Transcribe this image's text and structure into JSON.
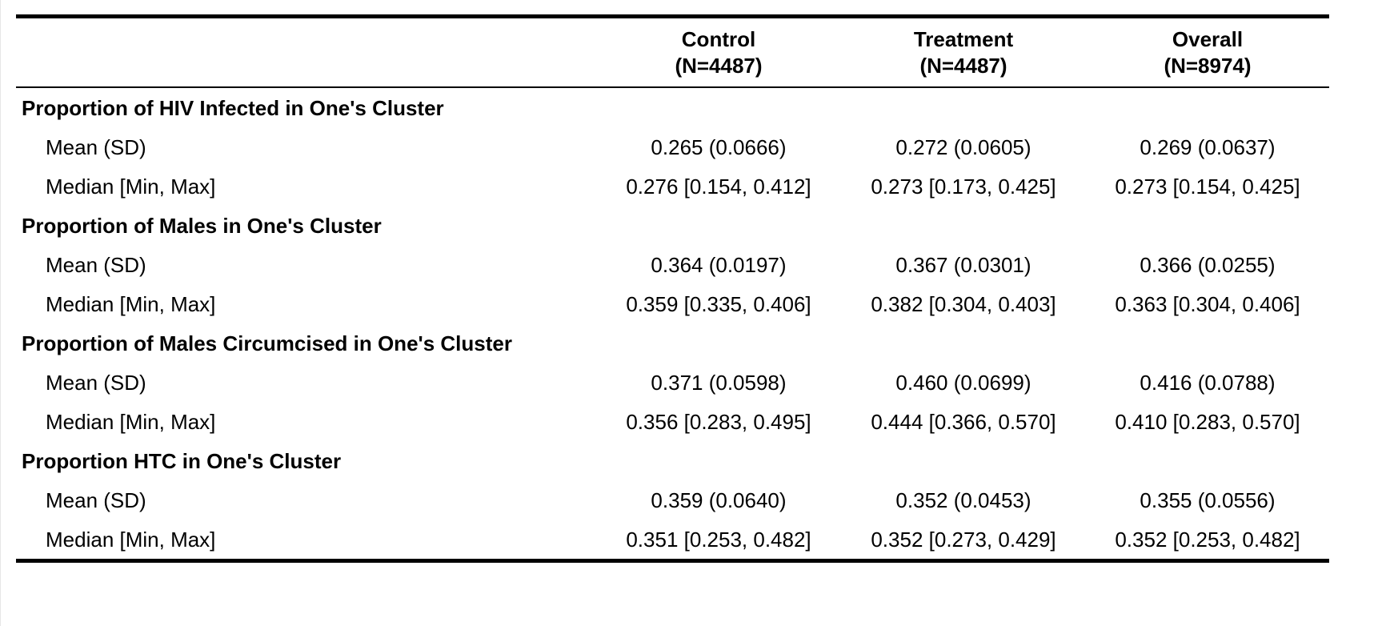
{
  "table": {
    "columns": [
      {
        "name": "Control",
        "n": "(N=4487)"
      },
      {
        "name": "Treatment",
        "n": "(N=4487)"
      },
      {
        "name": "Overall",
        "n": "(N=8974)"
      }
    ],
    "groups": [
      {
        "label": "Proportion of HIV Infected in One's Cluster",
        "rows": [
          {
            "label": "Mean (SD)",
            "values": [
              "0.265 (0.0666)",
              "0.272 (0.0605)",
              "0.269 (0.0637)"
            ]
          },
          {
            "label": "Median [Min, Max]",
            "values": [
              "0.276 [0.154, 0.412]",
              "0.273 [0.173, 0.425]",
              "0.273 [0.154, 0.425]"
            ]
          }
        ]
      },
      {
        "label": "Proportion of Males in One's Cluster",
        "rows": [
          {
            "label": "Mean (SD)",
            "values": [
              "0.364 (0.0197)",
              "0.367 (0.0301)",
              "0.366 (0.0255)"
            ]
          },
          {
            "label": "Median [Min, Max]",
            "values": [
              "0.359 [0.335, 0.406]",
              "0.382 [0.304, 0.403]",
              "0.363 [0.304, 0.406]"
            ]
          }
        ]
      },
      {
        "label": "Proportion of Males Circumcised in One's Cluster",
        "rows": [
          {
            "label": "Mean (SD)",
            "values": [
              "0.371 (0.0598)",
              "0.460 (0.0699)",
              "0.416 (0.0788)"
            ]
          },
          {
            "label": "Median [Min, Max]",
            "values": [
              "0.356 [0.283, 0.495]",
              "0.444 [0.366, 0.570]",
              "0.410 [0.283, 0.570]"
            ]
          }
        ]
      },
      {
        "label": "Proportion HTC in One's Cluster",
        "rows": [
          {
            "label": "Mean (SD)",
            "values": [
              "0.359 (0.0640)",
              "0.352 (0.0453)",
              "0.355 (0.0556)"
            ]
          },
          {
            "label": "Median [Min, Max]",
            "values": [
              "0.351 [0.253, 0.482]",
              "0.352 [0.273, 0.429]",
              "0.352 [0.253, 0.482]"
            ]
          }
        ]
      }
    ]
  }
}
